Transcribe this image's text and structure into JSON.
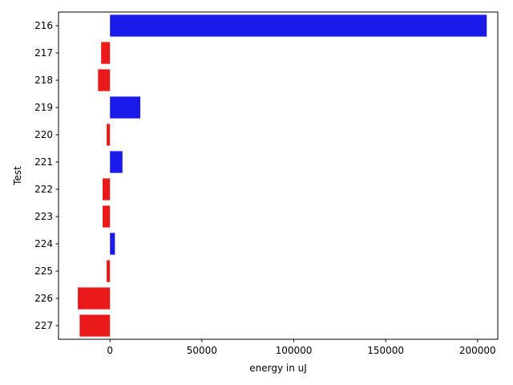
{
  "chart_data": {
    "type": "bar",
    "orientation": "horizontal",
    "title": "",
    "xlabel": "energy in uJ",
    "ylabel": "Test",
    "categories": [
      "216",
      "217",
      "218",
      "219",
      "220",
      "221",
      "222",
      "223",
      "224",
      "225",
      "226",
      "227"
    ],
    "values": [
      205000,
      -4800,
      -6500,
      16500,
      -1800,
      6800,
      -4000,
      -4000,
      2700,
      -1800,
      -17500,
      -16500
    ],
    "xlim": [
      -28000,
      211000
    ],
    "xticks": [
      0,
      50000,
      100000,
      150000,
      200000
    ],
    "xtick_labels": [
      "0",
      "50000",
      "100000",
      "150000",
      "200000"
    ],
    "grid": false,
    "colors": {
      "positive": "#1a1aeb",
      "negative": "#eb1a1a"
    }
  }
}
